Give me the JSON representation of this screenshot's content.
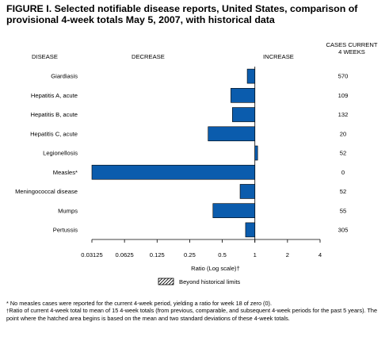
{
  "figure": {
    "title": "FIGURE I. Selected notifiable disease reports, United States, comparison of provisional 4-week totals May 5, 2007, with historical data",
    "header_disease": "DISEASE",
    "header_decrease": "DECREASE",
    "header_increase": "INCREASE",
    "header_cases_line1": "CASES CURRENT",
    "header_cases_line2": "4 WEEKS",
    "legend_label": "Beyond historical limits",
    "footnote1": "* No measles cases were reported for the current 4-week period, yielding a ratio for week 18 of zero (0).",
    "footnote2_mark": "†",
    "footnote2": "Ratio of current 4-week total to mean of 15 4-week totals (from previous, comparable, and subsequent 4-week periods for the past 5 years). The point where the hatched area begins is based on the mean and two standard deviations of these 4-week totals."
  },
  "chart_data": {
    "type": "bar",
    "orientation": "horizontal",
    "xscale": "log2",
    "xlabel": "Ratio (Log scale)†",
    "xlim": [
      0.03125,
      4
    ],
    "baseline": 1,
    "xticks": [
      "0.03125",
      "0.0625",
      "0.125",
      "0.25",
      "0.5",
      "1",
      "2",
      "4"
    ],
    "tick_values": [
      0.03125,
      0.0625,
      0.125,
      0.25,
      0.5,
      1,
      2,
      4
    ],
    "categories": [
      "Giardiasis",
      "Hepatitis A, acute",
      "Hepatitis B, acute",
      "Hepatitis C, acute",
      "Legionellosis",
      "Measles*",
      "Meningococcal disease",
      "Mumps",
      "Pertussis"
    ],
    "values": [
      0.85,
      0.6,
      0.62,
      0.37,
      1.06,
      0.03125,
      0.73,
      0.41,
      0.82
    ],
    "cases_current_4_weeks": [
      "570",
      "109",
      "132",
      "20",
      "52",
      "0",
      "52",
      "55",
      "305"
    ],
    "bar_color": "#0b5cad",
    "legend": "bottom-center"
  }
}
